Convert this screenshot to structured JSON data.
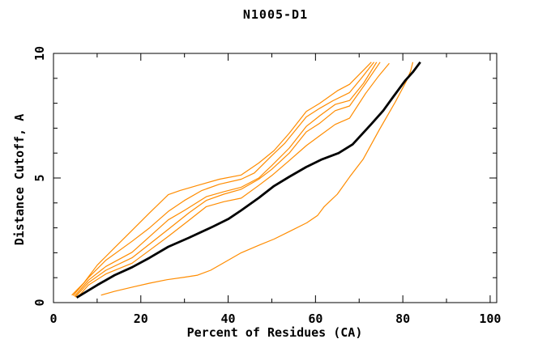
{
  "colors": {
    "background": "#ffffff",
    "frame": "#000000",
    "text": "#000000",
    "series_orange": "#ff8c00",
    "series_black": "#000000"
  },
  "chart_data": {
    "type": "line",
    "title": "N1005-D1",
    "xlabel": "Percent of Residues (CA)",
    "ylabel": "Distance Cutoff, A",
    "xlim": [
      0,
      101.5
    ],
    "ylim": [
      0,
      10
    ],
    "x_major_ticks": [
      0,
      20,
      40,
      60,
      80,
      100
    ],
    "x_minor_ticks": [
      10,
      30,
      50,
      70,
      90
    ],
    "y_major_ticks": [
      0,
      5,
      10
    ],
    "y_minor_ticks": [
      1,
      2,
      3,
      4,
      6,
      7,
      8,
      9
    ],
    "grid": false,
    "legend": "none",
    "frame": "full box, ticks inward, mirrored on top and right",
    "series": [
      {
        "id": "orange-1",
        "color": "#ff8c00",
        "width": 1.2,
        "points": [
          [
            4.2,
            0.3
          ],
          [
            7,
            0.8
          ],
          [
            10,
            1.5
          ],
          [
            14,
            2.2
          ],
          [
            18,
            2.9
          ],
          [
            22,
            3.6
          ],
          [
            26.3,
            4.33
          ],
          [
            29,
            4.5
          ],
          [
            33,
            4.7
          ],
          [
            38,
            4.95
          ],
          [
            43,
            5.12
          ],
          [
            47,
            5.6
          ],
          [
            50.5,
            6.1
          ],
          [
            54,
            6.8
          ],
          [
            57.9,
            7.67
          ],
          [
            61,
            8.0
          ],
          [
            65,
            8.5
          ],
          [
            67.8,
            8.76
          ],
          [
            70,
            9.15
          ],
          [
            72.8,
            9.65
          ]
        ]
      },
      {
        "id": "orange-2",
        "color": "#ff8c00",
        "width": 1.2,
        "points": [
          [
            4.5,
            0.28
          ],
          [
            8,
            1.0
          ],
          [
            12,
            1.7
          ],
          [
            18,
            2.46
          ],
          [
            22,
            3.0
          ],
          [
            26.3,
            3.66
          ],
          [
            30,
            4.1
          ],
          [
            34,
            4.5
          ],
          [
            38,
            4.75
          ],
          [
            43,
            4.95
          ],
          [
            46,
            5.2
          ],
          [
            50,
            5.9
          ],
          [
            53,
            6.4
          ],
          [
            57.9,
            7.45
          ],
          [
            61,
            7.8
          ],
          [
            64,
            8.1
          ],
          [
            67.8,
            8.43
          ],
          [
            70.5,
            9.0
          ],
          [
            73.4,
            9.65
          ]
        ]
      },
      {
        "id": "orange-3",
        "color": "#ff8c00",
        "width": 1.2,
        "points": [
          [
            4.8,
            0.25
          ],
          [
            8,
            0.9
          ],
          [
            12,
            1.45
          ],
          [
            18,
            2.02
          ],
          [
            22,
            2.65
          ],
          [
            26.3,
            3.32
          ],
          [
            30,
            3.7
          ],
          [
            35,
            4.25
          ],
          [
            39,
            4.45
          ],
          [
            43,
            4.63
          ],
          [
            47,
            5.0
          ],
          [
            50,
            5.5
          ],
          [
            54,
            6.2
          ],
          [
            57.9,
            7.07
          ],
          [
            61,
            7.5
          ],
          [
            64.5,
            7.95
          ],
          [
            67.8,
            8.11
          ],
          [
            71,
            8.8
          ],
          [
            74,
            9.65
          ]
        ]
      },
      {
        "id": "orange-4",
        "color": "#ff8c00",
        "width": 1.2,
        "points": [
          [
            5.0,
            0.22
          ],
          [
            8,
            0.8
          ],
          [
            12,
            1.3
          ],
          [
            18,
            1.8
          ],
          [
            22,
            2.35
          ],
          [
            26.3,
            2.94
          ],
          [
            31,
            3.6
          ],
          [
            35,
            4.1
          ],
          [
            39,
            4.35
          ],
          [
            43,
            4.55
          ],
          [
            47,
            4.95
          ],
          [
            50,
            5.35
          ],
          [
            54,
            6.0
          ],
          [
            57.9,
            6.85
          ],
          [
            61,
            7.2
          ],
          [
            64.5,
            7.7
          ],
          [
            67.8,
            7.89
          ],
          [
            71.5,
            8.8
          ],
          [
            74.8,
            9.65
          ]
        ]
      },
      {
        "id": "orange-5",
        "color": "#ff8c00",
        "width": 1.2,
        "points": [
          [
            5.5,
            0.2
          ],
          [
            8,
            0.7
          ],
          [
            12,
            1.15
          ],
          [
            18,
            1.58
          ],
          [
            22,
            2.1
          ],
          [
            26.3,
            2.66
          ],
          [
            31,
            3.3
          ],
          [
            35,
            3.85
          ],
          [
            39,
            4.05
          ],
          [
            43,
            4.19
          ],
          [
            47,
            4.7
          ],
          [
            50,
            5.1
          ],
          [
            54,
            5.7
          ],
          [
            57.9,
            6.3
          ],
          [
            61,
            6.7
          ],
          [
            64.5,
            7.15
          ],
          [
            67.8,
            7.4
          ],
          [
            71.5,
            8.4
          ],
          [
            74.5,
            9.1
          ],
          [
            76.9,
            9.6
          ]
        ]
      },
      {
        "id": "orange-outlier",
        "color": "#ff8c00",
        "width": 1.2,
        "points": [
          [
            10.9,
            0.3
          ],
          [
            14,
            0.45
          ],
          [
            18,
            0.62
          ],
          [
            22,
            0.78
          ],
          [
            26,
            0.92
          ],
          [
            30,
            1.02
          ],
          [
            33,
            1.1
          ],
          [
            36,
            1.3
          ],
          [
            40,
            1.7
          ],
          [
            43,
            2.0
          ],
          [
            47,
            2.3
          ],
          [
            50.5,
            2.55
          ],
          [
            54,
            2.85
          ],
          [
            58,
            3.2
          ],
          [
            60.5,
            3.5
          ],
          [
            62,
            3.85
          ],
          [
            63.5,
            4.1
          ],
          [
            65,
            4.35
          ],
          [
            67.8,
            5.04
          ],
          [
            70.9,
            5.75
          ],
          [
            74.6,
            6.93
          ],
          [
            78.3,
            8.06
          ],
          [
            80.8,
            8.88
          ],
          [
            81.8,
            9.3
          ],
          [
            82.3,
            9.65
          ]
        ]
      },
      {
        "id": "black-main",
        "color": "#000000",
        "width": 2.8,
        "points": [
          [
            5.3,
            0.2
          ],
          [
            10,
            0.7
          ],
          [
            14,
            1.1
          ],
          [
            18,
            1.42
          ],
          [
            22,
            1.8
          ],
          [
            26.3,
            2.24
          ],
          [
            31,
            2.6
          ],
          [
            36.5,
            3.05
          ],
          [
            40,
            3.35
          ],
          [
            43,
            3.7
          ],
          [
            47,
            4.2
          ],
          [
            50.5,
            4.68
          ],
          [
            54,
            5.05
          ],
          [
            57.9,
            5.44
          ],
          [
            61.5,
            5.75
          ],
          [
            65.3,
            6.0
          ],
          [
            68.5,
            6.35
          ],
          [
            72.7,
            7.15
          ],
          [
            75.5,
            7.7
          ],
          [
            77.7,
            8.23
          ],
          [
            80.5,
            8.9
          ],
          [
            82.3,
            9.25
          ],
          [
            84,
            9.65
          ]
        ]
      }
    ]
  }
}
